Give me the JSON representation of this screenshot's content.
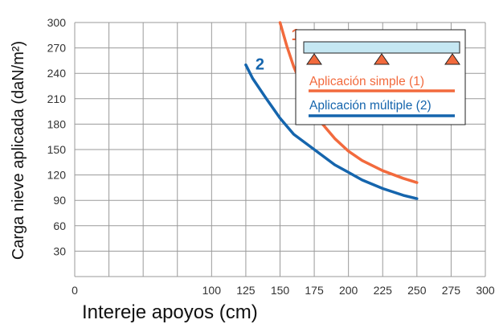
{
  "chart_data": {
    "type": "line",
    "xlabel": "Intereje apoyos (cm)",
    "ylabel": "Carga nieve aplicada  (daN/m²)",
    "xlim": [
      0,
      300
    ],
    "ylim": [
      0,
      300
    ],
    "x_ticks": [
      "0",
      "100",
      "125",
      "150",
      "175",
      "200",
      "225",
      "250",
      "275",
      "300"
    ],
    "y_ticks": [
      "30",
      "60",
      "90",
      "120",
      "150",
      "180",
      "210",
      "240",
      "270",
      "300"
    ],
    "grid": true,
    "series": [
      {
        "name": "Aplicación simple (1)",
        "curve_label": "1",
        "color": "#f26a3d",
        "x": [
          150,
          155,
          160,
          165,
          170,
          175,
          180,
          190,
          200,
          210,
          225,
          240,
          250
        ],
        "y": [
          300,
          272,
          248,
          229,
          211,
          196,
          182,
          163,
          148,
          137,
          125,
          116,
          111
        ]
      },
      {
        "name": "Aplicación múltiple (2)",
        "curve_label": "2",
        "color": "#1565ad",
        "x": [
          125,
          130,
          140,
          150,
          160,
          175,
          190,
          200,
          210,
          225,
          240,
          250
        ],
        "y": [
          250,
          234,
          210,
          187,
          168,
          150,
          132,
          123,
          114,
          104,
          96,
          92
        ]
      }
    ],
    "legend": {
      "position": "top-right",
      "diagram": "beam-on-three-supports",
      "beam_color": "#c5e7f2",
      "support_color": "#f26a3d"
    }
  }
}
